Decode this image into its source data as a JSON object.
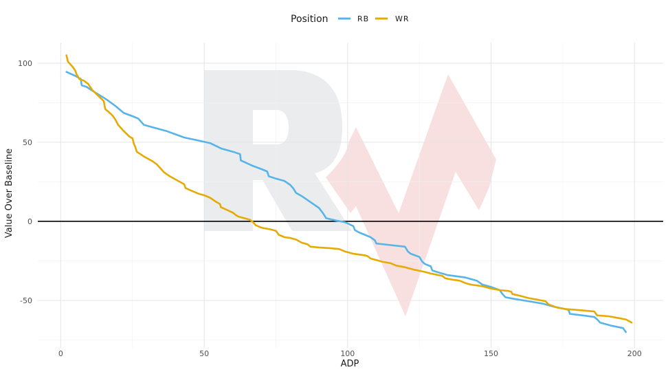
{
  "chart_data": {
    "type": "line",
    "title": "",
    "xlabel": "ADP",
    "ylabel": "Value Over Baseline",
    "xlim": [
      -8,
      210
    ],
    "ylim": [
      -80,
      113
    ],
    "x_ticks": [
      0,
      50,
      100,
      150,
      200
    ],
    "y_ticks": [
      -50,
      0,
      50,
      100
    ],
    "grid": true,
    "reference_line_y": 0,
    "legend": {
      "title": "Position",
      "placement": "top-center"
    },
    "series": [
      {
        "name": "RB",
        "color": "#56B4E9",
        "points": [
          [
            2,
            94.5
          ],
          [
            5,
            92
          ],
          [
            7,
            90
          ],
          [
            7.3,
            86
          ],
          [
            9,
            85
          ],
          [
            12,
            81.5
          ],
          [
            16,
            77
          ],
          [
            19,
            73
          ],
          [
            22,
            68.5
          ],
          [
            25,
            66.5
          ],
          [
            27,
            65
          ],
          [
            29,
            61
          ],
          [
            33,
            59
          ],
          [
            37,
            57
          ],
          [
            40,
            55
          ],
          [
            43,
            53
          ],
          [
            47,
            51.5
          ],
          [
            52,
            49.5
          ],
          [
            56,
            46
          ],
          [
            60,
            44
          ],
          [
            62.5,
            42.5
          ],
          [
            62.8,
            38.5
          ],
          [
            64,
            37.5
          ],
          [
            67,
            35
          ],
          [
            70,
            33
          ],
          [
            72,
            31.5
          ],
          [
            72.5,
            28.5
          ],
          [
            75,
            27
          ],
          [
            78,
            25.5
          ],
          [
            80,
            23
          ],
          [
            81,
            21
          ],
          [
            82,
            18
          ],
          [
            84,
            16
          ],
          [
            86,
            13.5
          ],
          [
            88,
            11
          ],
          [
            90,
            8.5
          ],
          [
            91.5,
            5
          ],
          [
            92.5,
            2
          ],
          [
            96,
            0.5
          ],
          [
            99,
            -0.5
          ],
          [
            102,
            -3
          ],
          [
            102.5,
            -5.5
          ],
          [
            104,
            -7
          ],
          [
            106,
            -8.5
          ],
          [
            108,
            -10
          ],
          [
            109.5,
            -12
          ],
          [
            110,
            -14
          ],
          [
            115,
            -15
          ],
          [
            120,
            -16
          ],
          [
            121,
            -19
          ],
          [
            122,
            -20.5
          ],
          [
            125,
            -22.5
          ],
          [
            126,
            -25.5
          ],
          [
            127,
            -27
          ],
          [
            129,
            -28.5
          ],
          [
            129.5,
            -31
          ],
          [
            132,
            -32.5
          ],
          [
            135,
            -34
          ],
          [
            141,
            -35.5
          ],
          [
            145,
            -37.5
          ],
          [
            147,
            -40
          ],
          [
            150,
            -41.5
          ],
          [
            153,
            -43.5
          ],
          [
            154,
            -46
          ],
          [
            155,
            -48
          ],
          [
            158,
            -49
          ],
          [
            163,
            -50.5
          ],
          [
            168,
            -52
          ],
          [
            172,
            -54
          ],
          [
            176,
            -55.5
          ],
          [
            177,
            -56
          ],
          [
            177.5,
            -58.5
          ],
          [
            182,
            -59.5
          ],
          [
            186,
            -60.5
          ],
          [
            187,
            -62
          ],
          [
            188,
            -64
          ],
          [
            192,
            -66
          ],
          [
            196,
            -67.5
          ],
          [
            197,
            -70
          ]
        ]
      },
      {
        "name": "WR",
        "color": "#E6AB02",
        "points": [
          [
            2,
            105
          ],
          [
            2.5,
            101
          ],
          [
            4,
            98
          ],
          [
            5,
            95.5
          ],
          [
            5.5,
            93
          ],
          [
            6.5,
            90
          ],
          [
            8,
            89
          ],
          [
            9.5,
            87
          ],
          [
            11,
            83
          ],
          [
            13,
            79.5
          ],
          [
            15,
            76
          ],
          [
            15.5,
            71
          ],
          [
            16.5,
            69.5
          ],
          [
            18,
            67
          ],
          [
            19,
            64.5
          ],
          [
            20,
            61
          ],
          [
            22,
            57
          ],
          [
            24,
            53.5
          ],
          [
            25,
            52.5
          ],
          [
            25.5,
            49
          ],
          [
            26,
            47
          ],
          [
            26.5,
            44
          ],
          [
            29,
            41
          ],
          [
            32,
            38
          ],
          [
            33.5,
            36
          ],
          [
            35,
            33
          ],
          [
            36,
            31
          ],
          [
            38,
            28.5
          ],
          [
            40,
            26.5
          ],
          [
            42,
            24.5
          ],
          [
            43,
            23.5
          ],
          [
            43.5,
            21
          ],
          [
            46,
            19
          ],
          [
            48,
            17.5
          ],
          [
            50,
            16.5
          ],
          [
            52,
            15
          ],
          [
            54,
            12.5
          ],
          [
            55.5,
            11
          ],
          [
            55.8,
            9
          ],
          [
            57,
            8
          ],
          [
            60,
            5.5
          ],
          [
            61,
            4
          ],
          [
            62,
            3
          ],
          [
            64,
            2
          ],
          [
            66,
            1
          ],
          [
            67,
            -0.5
          ],
          [
            68,
            -2.5
          ],
          [
            70,
            -4
          ],
          [
            73,
            -5
          ],
          [
            75,
            -6
          ],
          [
            76,
            -8.5
          ],
          [
            78,
            -10
          ],
          [
            80,
            -10.5
          ],
          [
            82,
            -11.5
          ],
          [
            84,
            -13.5
          ],
          [
            86,
            -14.5
          ],
          [
            87,
            -16
          ],
          [
            90,
            -16.5
          ],
          [
            94,
            -17
          ],
          [
            97,
            -17.5
          ],
          [
            99,
            -19
          ],
          [
            102,
            -20.5
          ],
          [
            106,
            -21.5
          ],
          [
            107,
            -22
          ],
          [
            108,
            -23.5
          ],
          [
            110,
            -24.5
          ],
          [
            112,
            -25.5
          ],
          [
            115,
            -26.5
          ],
          [
            117,
            -28
          ],
          [
            120,
            -29
          ],
          [
            123,
            -30.5
          ],
          [
            127,
            -32
          ],
          [
            129,
            -33
          ],
          [
            133,
            -34.5
          ],
          [
            134,
            -36
          ],
          [
            137,
            -37
          ],
          [
            139,
            -37.5
          ],
          [
            141,
            -39
          ],
          [
            143,
            -40
          ],
          [
            147,
            -41
          ],
          [
            150,
            -42.5
          ],
          [
            153,
            -43.5
          ],
          [
            156,
            -44
          ],
          [
            157,
            -44.5
          ],
          [
            157.5,
            -46
          ],
          [
            160,
            -47
          ],
          [
            163,
            -48.5
          ],
          [
            166,
            -49.5
          ],
          [
            169,
            -50.5
          ],
          [
            170,
            -52.5
          ],
          [
            173,
            -54.5
          ],
          [
            176,
            -55.5
          ],
          [
            180,
            -56
          ],
          [
            186,
            -57
          ],
          [
            187,
            -59.5
          ],
          [
            191,
            -60
          ],
          [
            194,
            -61
          ],
          [
            197,
            -62
          ],
          [
            198,
            -63
          ],
          [
            199,
            -64
          ]
        ]
      }
    ]
  }
}
